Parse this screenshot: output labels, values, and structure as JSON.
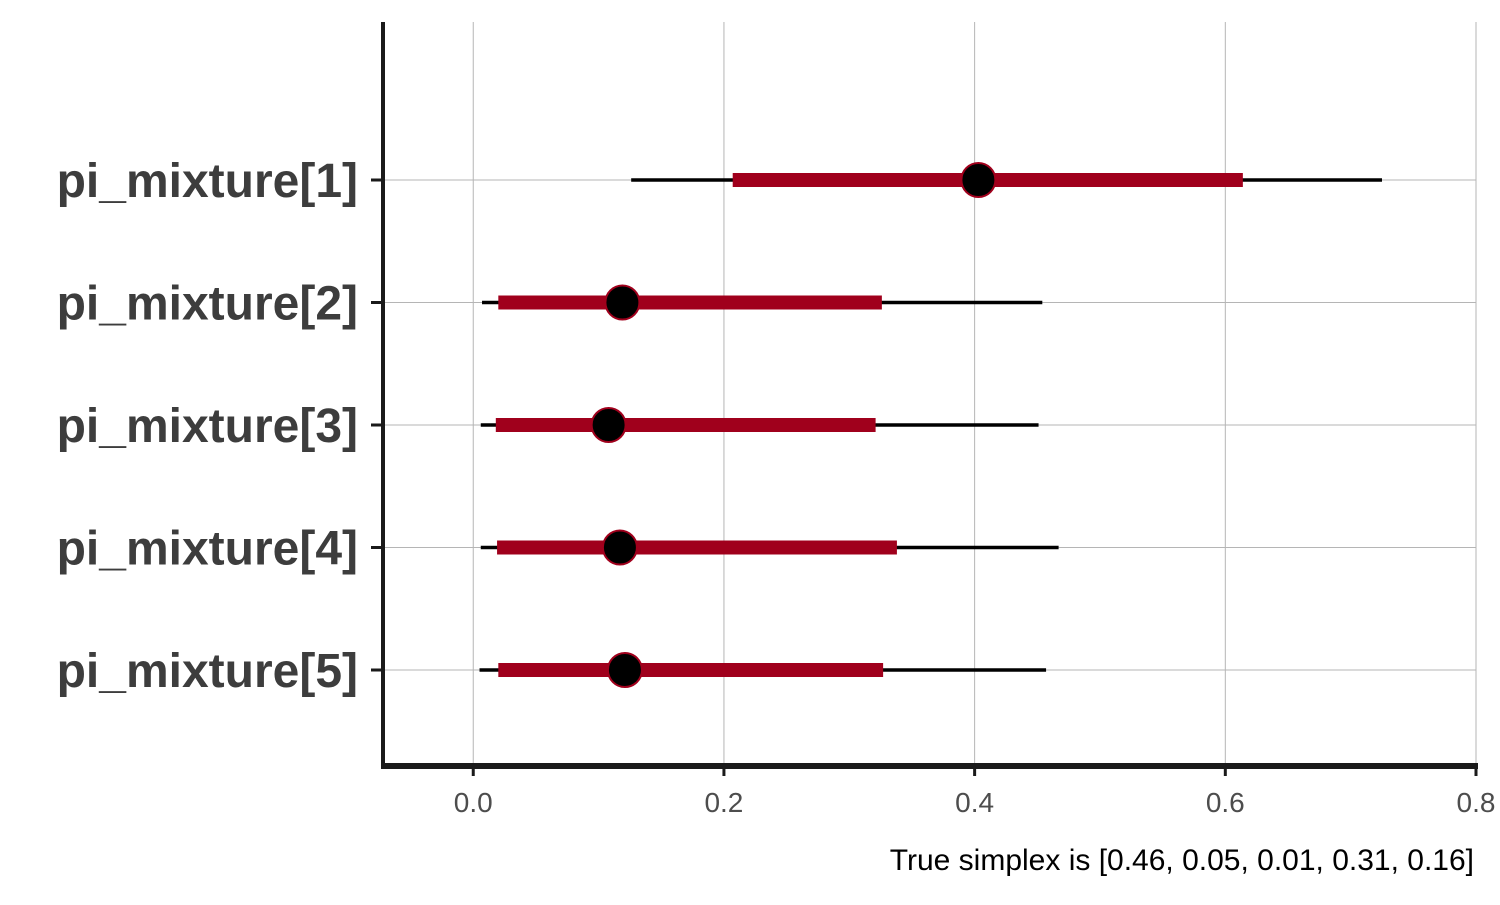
{
  "chart_data": {
    "type": "interval",
    "title": "",
    "xlabel": "",
    "ylabel": "",
    "caption": "True simplex is [0.46, 0.05, 0.01, 0.31, 0.16]",
    "xlim": [
      -0.072,
      0.8
    ],
    "xticks": [
      0.0,
      0.2,
      0.4,
      0.6,
      0.8
    ],
    "xtick_labels": [
      "0.0",
      "0.2",
      "0.4",
      "0.6",
      "0.8"
    ],
    "grid": true,
    "parameters": [
      {
        "label": "pi_mixture[1]",
        "point": 0.403,
        "inner": [
          0.207,
          0.614
        ],
        "outer": [
          0.126,
          0.725
        ]
      },
      {
        "label": "pi_mixture[2]",
        "point": 0.119,
        "inner": [
          0.02,
          0.326
        ],
        "outer": [
          0.007,
          0.454
        ]
      },
      {
        "label": "pi_mixture[3]",
        "point": 0.108,
        "inner": [
          0.018,
          0.321
        ],
        "outer": [
          0.006,
          0.451
        ]
      },
      {
        "label": "pi_mixture[4]",
        "point": 0.117,
        "inner": [
          0.019,
          0.338
        ],
        "outer": [
          0.006,
          0.467
        ]
      },
      {
        "label": "pi_mixture[5]",
        "point": 0.121,
        "inner": [
          0.02,
          0.327
        ],
        "outer": [
          0.005,
          0.457
        ]
      }
    ],
    "colors": {
      "inner_interval": "#a0001c",
      "outer_interval": "#000000",
      "point_fill": "#000000",
      "point_stroke": "#a0001c",
      "grid": "#b5b5b5",
      "axis": "#1a1a1a"
    }
  }
}
